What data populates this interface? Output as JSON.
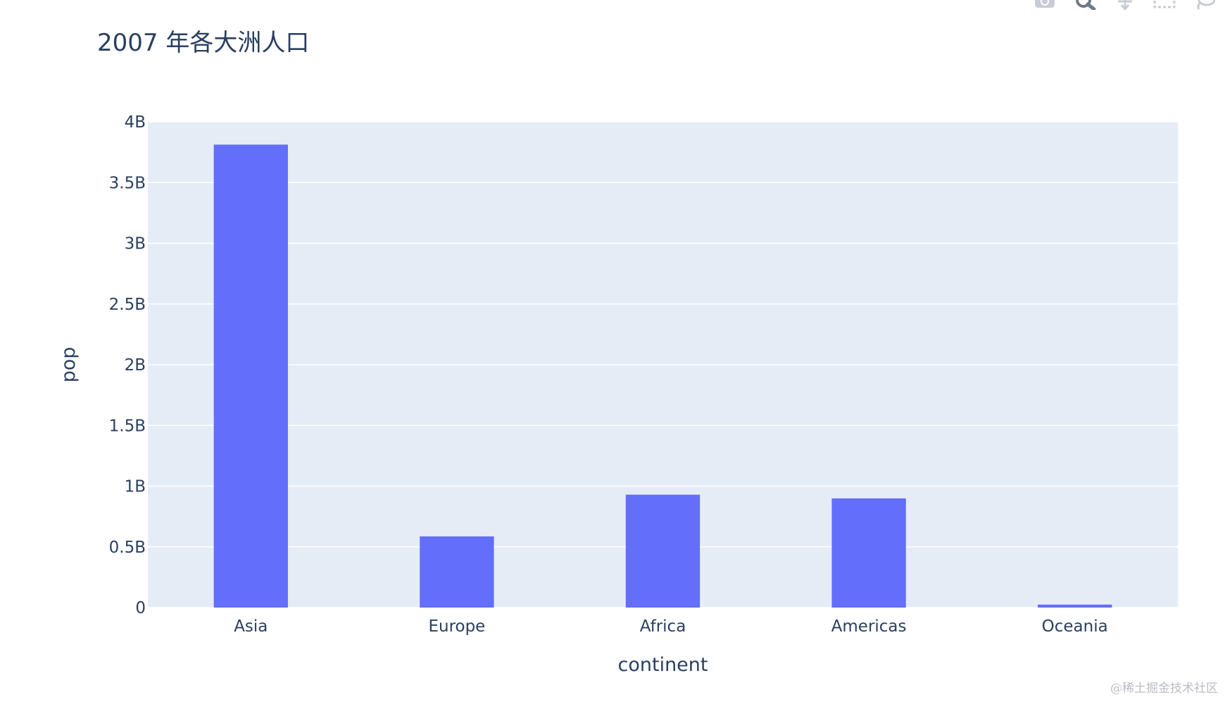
{
  "modebar": {
    "icons": [
      "camera-icon",
      "zoom-icon",
      "pan-icon",
      "select-box-icon",
      "lasso-icon"
    ]
  },
  "watermark": "@稀土掘金技术社区",
  "colors": {
    "bar": "#636efa",
    "plot_bg": "#e5ecf6",
    "grid": "#ffffff",
    "text": "#2a3f5f"
  },
  "chart_data": {
    "type": "bar",
    "barmode": "stack",
    "title": "2007 年各大洲人口",
    "xlabel": "continent",
    "ylabel": "pop",
    "ylim": [
      0,
      4000000000
    ],
    "yticks": [
      {
        "value": 0,
        "label": "0"
      },
      {
        "value": 500000000,
        "label": "0.5B"
      },
      {
        "value": 1000000000,
        "label": "1B"
      },
      {
        "value": 1500000000,
        "label": "1.5B"
      },
      {
        "value": 2000000000,
        "label": "2B"
      },
      {
        "value": 2500000000,
        "label": "2.5B"
      },
      {
        "value": 3000000000,
        "label": "3B"
      },
      {
        "value": 3500000000,
        "label": "3.5B"
      },
      {
        "value": 4000000000,
        "label": "4B"
      }
    ],
    "grid": true,
    "categories": [
      "Asia",
      "Europe",
      "Africa",
      "Americas",
      "Oceania"
    ],
    "values": [
      3811953827,
      586098529,
      929539692,
      898871184,
      24549947
    ]
  }
}
